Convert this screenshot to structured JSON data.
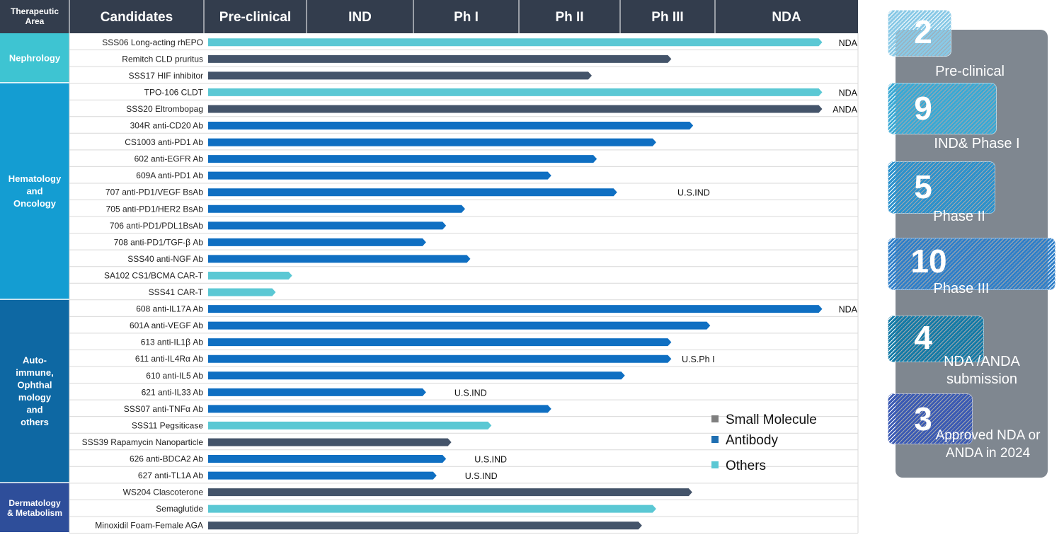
{
  "header": {
    "area": "Therapeutic Area",
    "candidates": "Candidates",
    "stages": [
      "Pre-clinical",
      "IND",
      "Ph I",
      "Ph II",
      "Ph III",
      "NDA"
    ]
  },
  "colors": {
    "header_bg": "#333d4d",
    "small_molecule": "#44546a",
    "antibody": "#0f6fc2",
    "others": "#5bc8d4",
    "area_nephrology": "#3ec4d2",
    "area_hematology": "#149dd2",
    "area_autoimmune": "#0e68a3",
    "area_dermatology": "#2e4e9a"
  },
  "legend": [
    {
      "label": "Small Molecule",
      "color": "#7f7f7f"
    },
    {
      "label": "Antibody",
      "color": "#1f6fb2"
    },
    {
      "label": "Others",
      "color": "#5bc8d4"
    }
  ],
  "areas": [
    {
      "name": "Nephrology",
      "rows": 3
    },
    {
      "name": "Hematology and Oncology",
      "rows": 13
    },
    {
      "name": "Auto- immune, Ophthal mology and others",
      "rows": 11
    },
    {
      "name": "Dermatology & Metabolism",
      "rows": 3
    }
  ],
  "chart_data": {
    "type": "bar",
    "orientation": "horizontal",
    "x_axis": "development stage",
    "stage_positions": {
      "Pre-clinical": 0,
      "IND": 1,
      "Ph I": 2,
      "Ph II": 3,
      "Ph III": 4,
      "NDA": 5,
      "end": 6
    },
    "rows": [
      {
        "candidate": "SSS06 Long-acting rhEPO",
        "type": "Others",
        "progress": 5.75,
        "annotation": "NDA"
      },
      {
        "candidate": "Remitch CLD pruritus",
        "type": "Small Molecule",
        "progress": 4.54,
        "annotation": ""
      },
      {
        "candidate": "SSS17 HIF inhibitor",
        "type": "Small Molecule",
        "progress": 3.72,
        "annotation": ""
      },
      {
        "candidate": "TPO-106 CLDT",
        "type": "Others",
        "progress": 5.75,
        "annotation": "NDA"
      },
      {
        "candidate": "SSS20 Eltrombopag",
        "type": "Small Molecule",
        "progress": 5.75,
        "annotation": "ANDA"
      },
      {
        "candidate": "304R anti-CD20 Ab",
        "type": "Antibody",
        "progress": 4.77,
        "annotation": ""
      },
      {
        "candidate": "CS1003 anti-PD1 Ab",
        "type": "Antibody",
        "progress": 4.38,
        "annotation": ""
      },
      {
        "candidate": "602 anti-EGFR Ab",
        "type": "Antibody",
        "progress": 3.77,
        "annotation": ""
      },
      {
        "candidate": "609A anti-PD1 Ab",
        "type": "Antibody",
        "progress": 3.32,
        "annotation": ""
      },
      {
        "candidate": "707  anti-PD1/VEGF BsAb",
        "type": "Antibody",
        "progress": 3.97,
        "annotation": "U.S.IND"
      },
      {
        "candidate": "705  anti-PD1/HER2 BsAb",
        "type": "Antibody",
        "progress": 2.49,
        "annotation": ""
      },
      {
        "candidate": "706 anti-PD1/PDL1BsAb",
        "type": "Antibody",
        "progress": 2.31,
        "annotation": ""
      },
      {
        "candidate": "708 anti-PD1/TGF-β Ab",
        "type": "Antibody",
        "progress": 2.12,
        "annotation": ""
      },
      {
        "candidate": "SSS40 anti-NGF Ab",
        "type": "Antibody",
        "progress": 2.54,
        "annotation": ""
      },
      {
        "candidate": "SA102 CS1/BCMA CAR-T",
        "type": "Others",
        "progress": 0.86,
        "annotation": ""
      },
      {
        "candidate": "SSS41 CAR-T",
        "type": "Others",
        "progress": 0.7,
        "annotation": ""
      },
      {
        "candidate": "608 anti-IL17A Ab",
        "type": "Antibody",
        "progress": 5.75,
        "annotation": "NDA"
      },
      {
        "candidate": "601A anti-VEGF Ab",
        "type": "Antibody",
        "progress": 4.95,
        "annotation": ""
      },
      {
        "candidate": "613 anti-IL1β Ab",
        "type": "Antibody",
        "progress": 4.54,
        "annotation": ""
      },
      {
        "candidate": "611 anti-IL4Rα Ab",
        "type": "Antibody",
        "progress": 4.54,
        "annotation": "U.S.Ph I"
      },
      {
        "candidate": "610 anti-IL5 Ab",
        "type": "Antibody",
        "progress": 4.05,
        "annotation": ""
      },
      {
        "candidate": "621 anti-IL33 Ab",
        "type": "Antibody",
        "progress": 2.12,
        "annotation": "U.S.IND"
      },
      {
        "candidate": "SSS07 anti-TNFα Ab",
        "type": "Antibody",
        "progress": 3.32,
        "annotation": ""
      },
      {
        "candidate": "SSS11  Pegsiticase",
        "type": "Others",
        "progress": 2.74,
        "annotation": ""
      },
      {
        "candidate": "SSS39 Rapamycin Nanoparticle",
        "type": "Small Molecule",
        "progress": 2.36,
        "annotation": ""
      },
      {
        "candidate": "626 anti-BDCA2 Ab",
        "type": "Antibody",
        "progress": 2.31,
        "annotation": "U.S.IND"
      },
      {
        "candidate": "627 anti-TL1A Ab",
        "type": "Antibody",
        "progress": 2.22,
        "annotation": "U.S.IND"
      },
      {
        "candidate": "WS204 Clascoterone",
        "type": "Small Molecule",
        "progress": 4.76,
        "annotation": ""
      },
      {
        "candidate": "Semaglutide",
        "type": "Others",
        "progress": 4.38,
        "annotation": ""
      },
      {
        "candidate": "Minoxidil Foam-Female AGA",
        "type": "Small Molecule",
        "progress": 4.23,
        "annotation": ""
      }
    ]
  },
  "summary": [
    {
      "count": "2",
      "label": "Pre-clinical",
      "color": "#89c9e6"
    },
    {
      "count": "9",
      "label": "IND& Phase I",
      "color": "#3aa9d4"
    },
    {
      "count": "5",
      "label": "Phase II",
      "color": "#2b91cc"
    },
    {
      "count": "10",
      "label": "Phase III",
      "color": "#2f7fc9"
    },
    {
      "count": "4",
      "label": "NDA /ANDA submission",
      "color": "#137aa6"
    },
    {
      "count": "3",
      "label": "Approved NDA or ANDA in 2024",
      "color": "#3a59b3"
    }
  ]
}
